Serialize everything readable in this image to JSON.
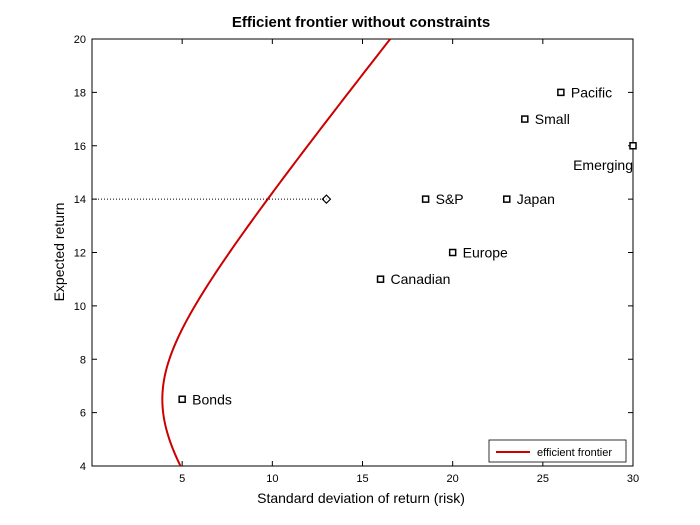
{
  "chart_data": {
    "type": "line",
    "title": "Efficient frontier without constraints",
    "xlabel": "Standard deviation of return (risk)",
    "ylabel": "Expected return",
    "xlim": [
      0,
      30
    ],
    "ylim": [
      4,
      20
    ],
    "xticks": [
      5,
      10,
      15,
      20,
      25,
      30
    ],
    "yticks": [
      4,
      6,
      8,
      10,
      12,
      14,
      16,
      18,
      20
    ],
    "grid": false,
    "legend": {
      "position": "bottom-right",
      "entries": [
        "efficient frontier"
      ]
    },
    "series": [
      {
        "name": "efficient frontier",
        "color": "#cc0000",
        "style": "line",
        "frontier": {
          "min_variance_return": 6.5,
          "min_std": 3.9,
          "slope": 0.84
        },
        "y_range": [
          4,
          20
        ]
      }
    ],
    "highlight_point": {
      "x": 13,
      "y": 14,
      "marker": "diamond",
      "guide_line": "dotted-horizontal-to-y-axis"
    },
    "assets": [
      {
        "label": "Bonds",
        "x": 5,
        "y": 6.5
      },
      {
        "label": "Canadian",
        "x": 16,
        "y": 11
      },
      {
        "label": "Europe",
        "x": 20,
        "y": 12
      },
      {
        "label": "S&P",
        "x": 18.5,
        "y": 14
      },
      {
        "label": "Japan",
        "x": 23,
        "y": 14
      },
      {
        "label": "Small",
        "x": 24,
        "y": 17
      },
      {
        "label": "Pacific",
        "x": 26,
        "y": 18
      },
      {
        "label": "Emerging",
        "x": 30,
        "y": 16,
        "label_position": "below-left"
      }
    ]
  }
}
